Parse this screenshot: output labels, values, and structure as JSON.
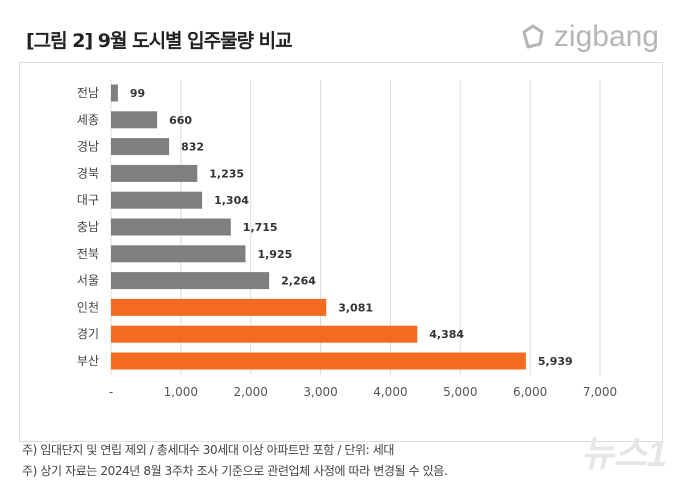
{
  "header": {
    "title": "[그림 2] 9월 도시별 입주물량 비교",
    "logo": "zigbang"
  },
  "chart_data": {
    "type": "bar",
    "orientation": "horizontal",
    "categories": [
      "전남",
      "세종",
      "경남",
      "경북",
      "대구",
      "충남",
      "전북",
      "서울",
      "인천",
      "경기",
      "부산"
    ],
    "values": [
      99,
      660,
      832,
      1235,
      1304,
      1715,
      1925,
      2264,
      3081,
      4384,
      5939
    ],
    "data_labels": [
      "99",
      "660",
      "832",
      "1,235",
      "1,304",
      "1,715",
      "1,925",
      "2,264",
      "3,081",
      "4,384",
      "5,939"
    ],
    "highlighted": [
      "인천",
      "경기",
      "부산"
    ],
    "colors": {
      "default": "#7f7f7f",
      "highlight": "#f26b21"
    },
    "xlim": [
      0,
      7000
    ],
    "x_ticks": [
      0,
      1000,
      2000,
      3000,
      4000,
      5000,
      6000,
      7000
    ],
    "x_tick_labels": [
      "-",
      "1,000",
      "2,000",
      "3,000",
      "4,000",
      "5,000",
      "6,000",
      "7,000"
    ],
    "grid": "vertical"
  },
  "notes": [
    "주) 임대단지 및 연립 제외 / 총세대수 30세대 이상 아파트만 포함 / 단위: 세대",
    "주) 상기 자료는 2024년 8월 3주차 조사 기준으로 관련업체 사정에 따라 변경될 수 있음."
  ],
  "watermark": "뉴스1"
}
